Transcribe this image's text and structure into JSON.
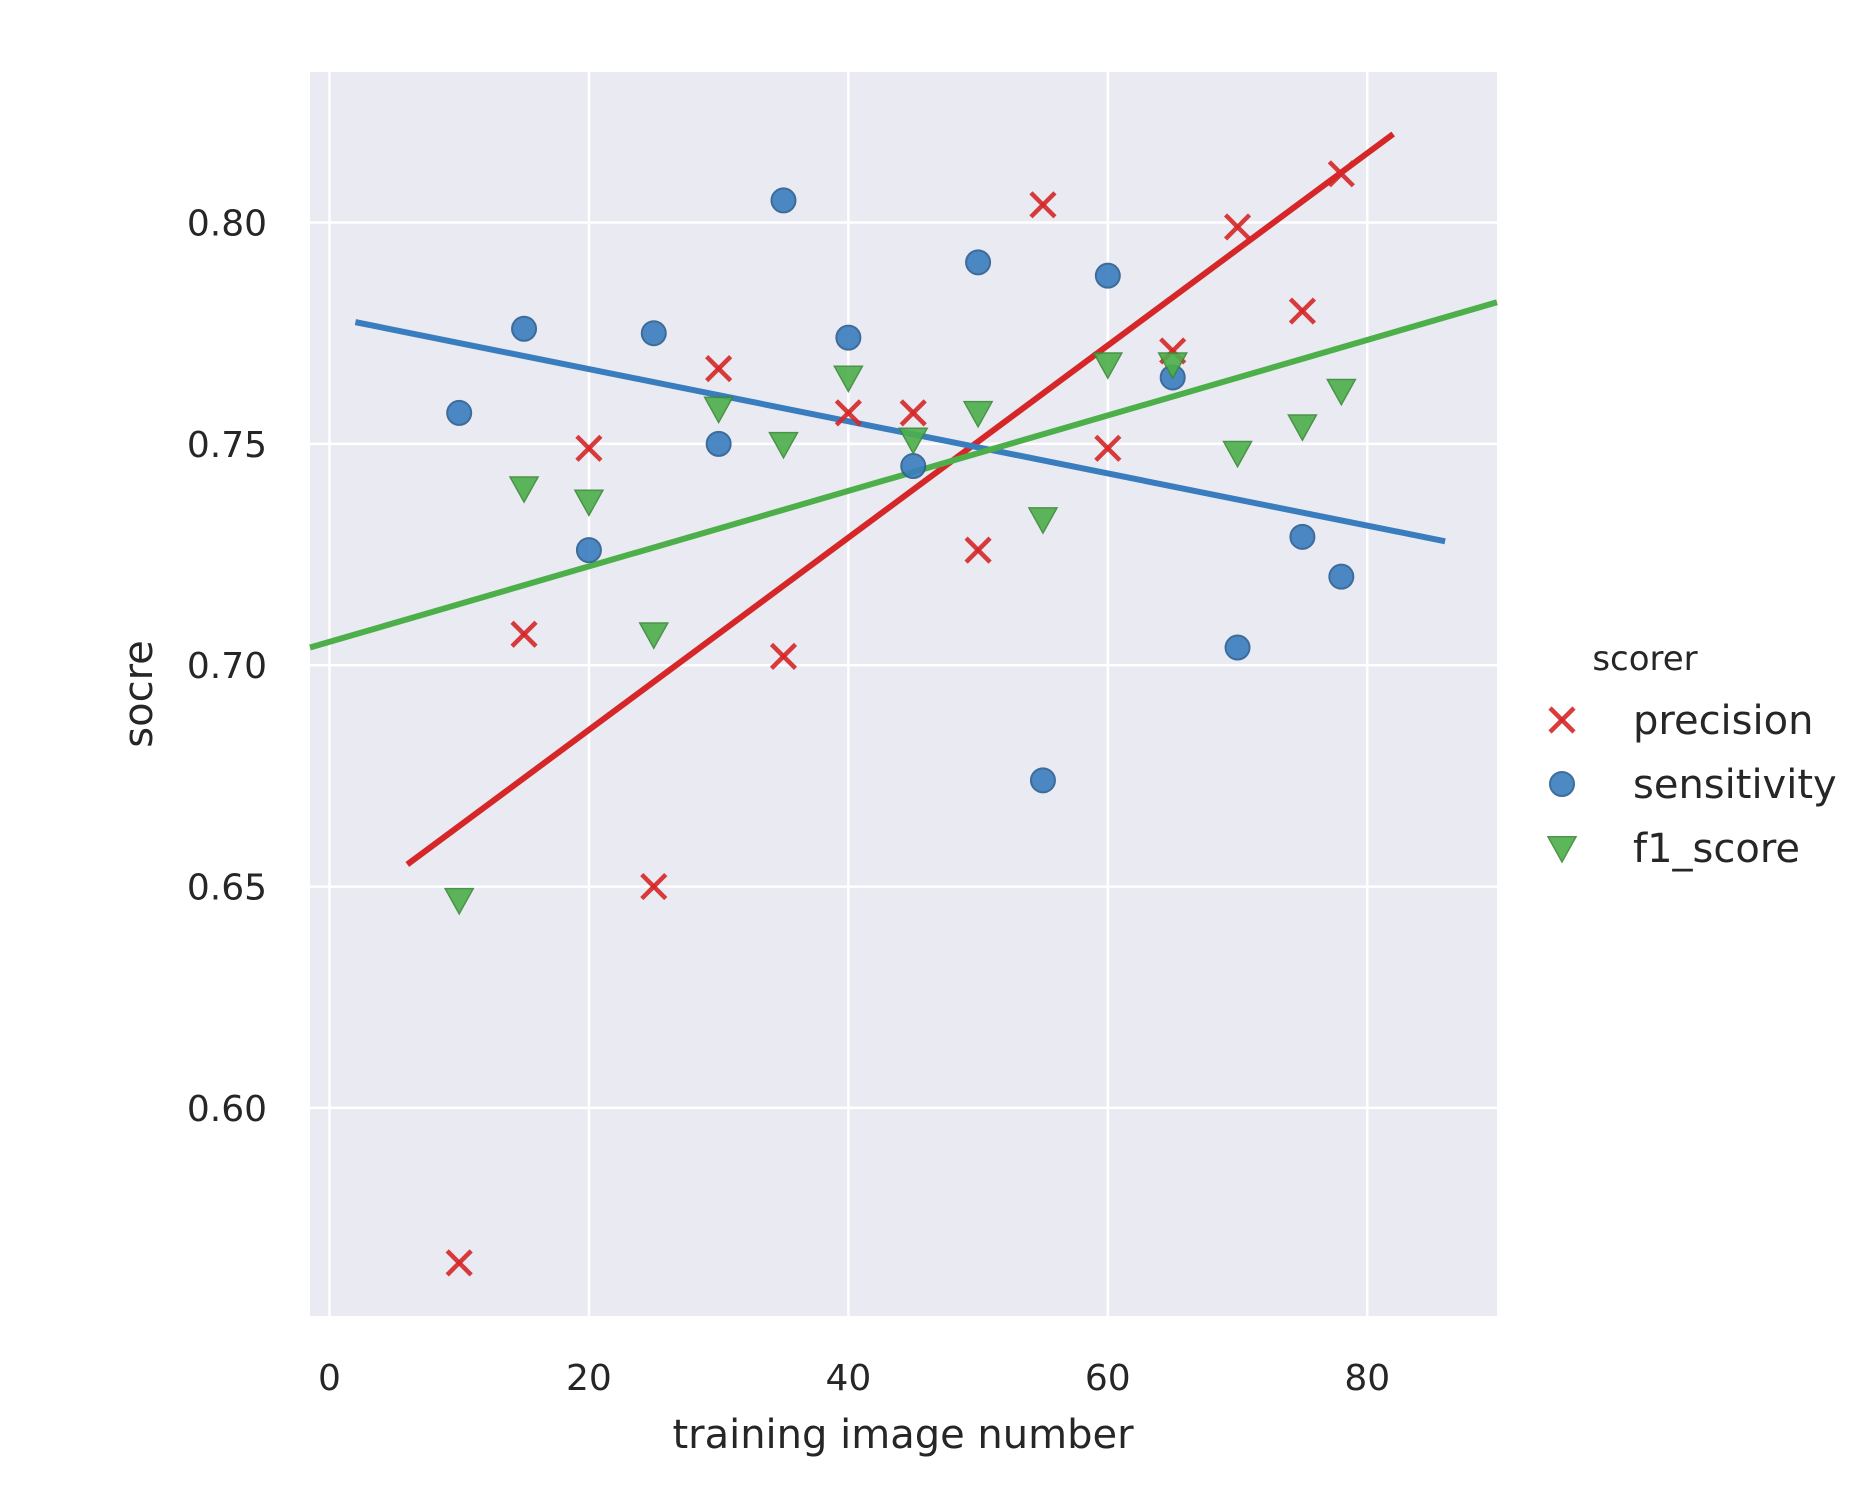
{
  "chart_data": {
    "type": "scatter",
    "xlabel": "training image number",
    "ylabel": "socre",
    "xlim": [
      -1.5,
      90
    ],
    "ylim": [
      0.553,
      0.834
    ],
    "xticks": [
      0,
      20,
      40,
      60,
      80
    ],
    "yticks": [
      0.6,
      0.65,
      0.7,
      0.75,
      0.8
    ],
    "grid": true,
    "legend": {
      "title": "scorer",
      "placement": "right"
    },
    "series": [
      {
        "name": "precision",
        "marker": "x",
        "color": "#d62728",
        "points": [
          [
            10,
            0.565
          ],
          [
            15,
            0.707
          ],
          [
            20,
            0.749
          ],
          [
            25,
            0.65
          ],
          [
            30,
            0.767
          ],
          [
            35,
            0.702
          ],
          [
            40,
            0.757
          ],
          [
            45,
            0.757
          ],
          [
            50,
            0.726
          ],
          [
            55,
            0.804
          ],
          [
            60,
            0.749
          ],
          [
            65,
            0.771
          ],
          [
            70,
            0.799
          ],
          [
            75,
            0.78
          ],
          [
            78,
            0.811
          ]
        ],
        "fit": {
          "x": [
            6,
            82
          ],
          "y": [
            0.655,
            0.82
          ]
        }
      },
      {
        "name": "sensitivity",
        "marker": "o",
        "color": "#3a7dbf",
        "points": [
          [
            10,
            0.757
          ],
          [
            15,
            0.776
          ],
          [
            20,
            0.726
          ],
          [
            25,
            0.775
          ],
          [
            30,
            0.75
          ],
          [
            35,
            0.805
          ],
          [
            40,
            0.774
          ],
          [
            45,
            0.745
          ],
          [
            50,
            0.791
          ],
          [
            55,
            0.674
          ],
          [
            60,
            0.788
          ],
          [
            65,
            0.765
          ],
          [
            70,
            0.704
          ],
          [
            75,
            0.729
          ],
          [
            78,
            0.72
          ]
        ],
        "fit": {
          "x": [
            2,
            86
          ],
          "y": [
            0.7775,
            0.728
          ]
        }
      },
      {
        "name": "f1_score",
        "marker": "v",
        "color": "#4daf4a",
        "points": [
          [
            10,
            0.647
          ],
          [
            15,
            0.74
          ],
          [
            20,
            0.737
          ],
          [
            25,
            0.707
          ],
          [
            30,
            0.758
          ],
          [
            35,
            0.75
          ],
          [
            40,
            0.765
          ],
          [
            45,
            0.751
          ],
          [
            50,
            0.757
          ],
          [
            55,
            0.733
          ],
          [
            60,
            0.768
          ],
          [
            65,
            0.768
          ],
          [
            70,
            0.748
          ],
          [
            75,
            0.754
          ],
          [
            78,
            0.762
          ]
        ],
        "fit": {
          "x": [
            -1.5,
            90
          ],
          "y": [
            0.704,
            0.782
          ]
        }
      }
    ]
  }
}
